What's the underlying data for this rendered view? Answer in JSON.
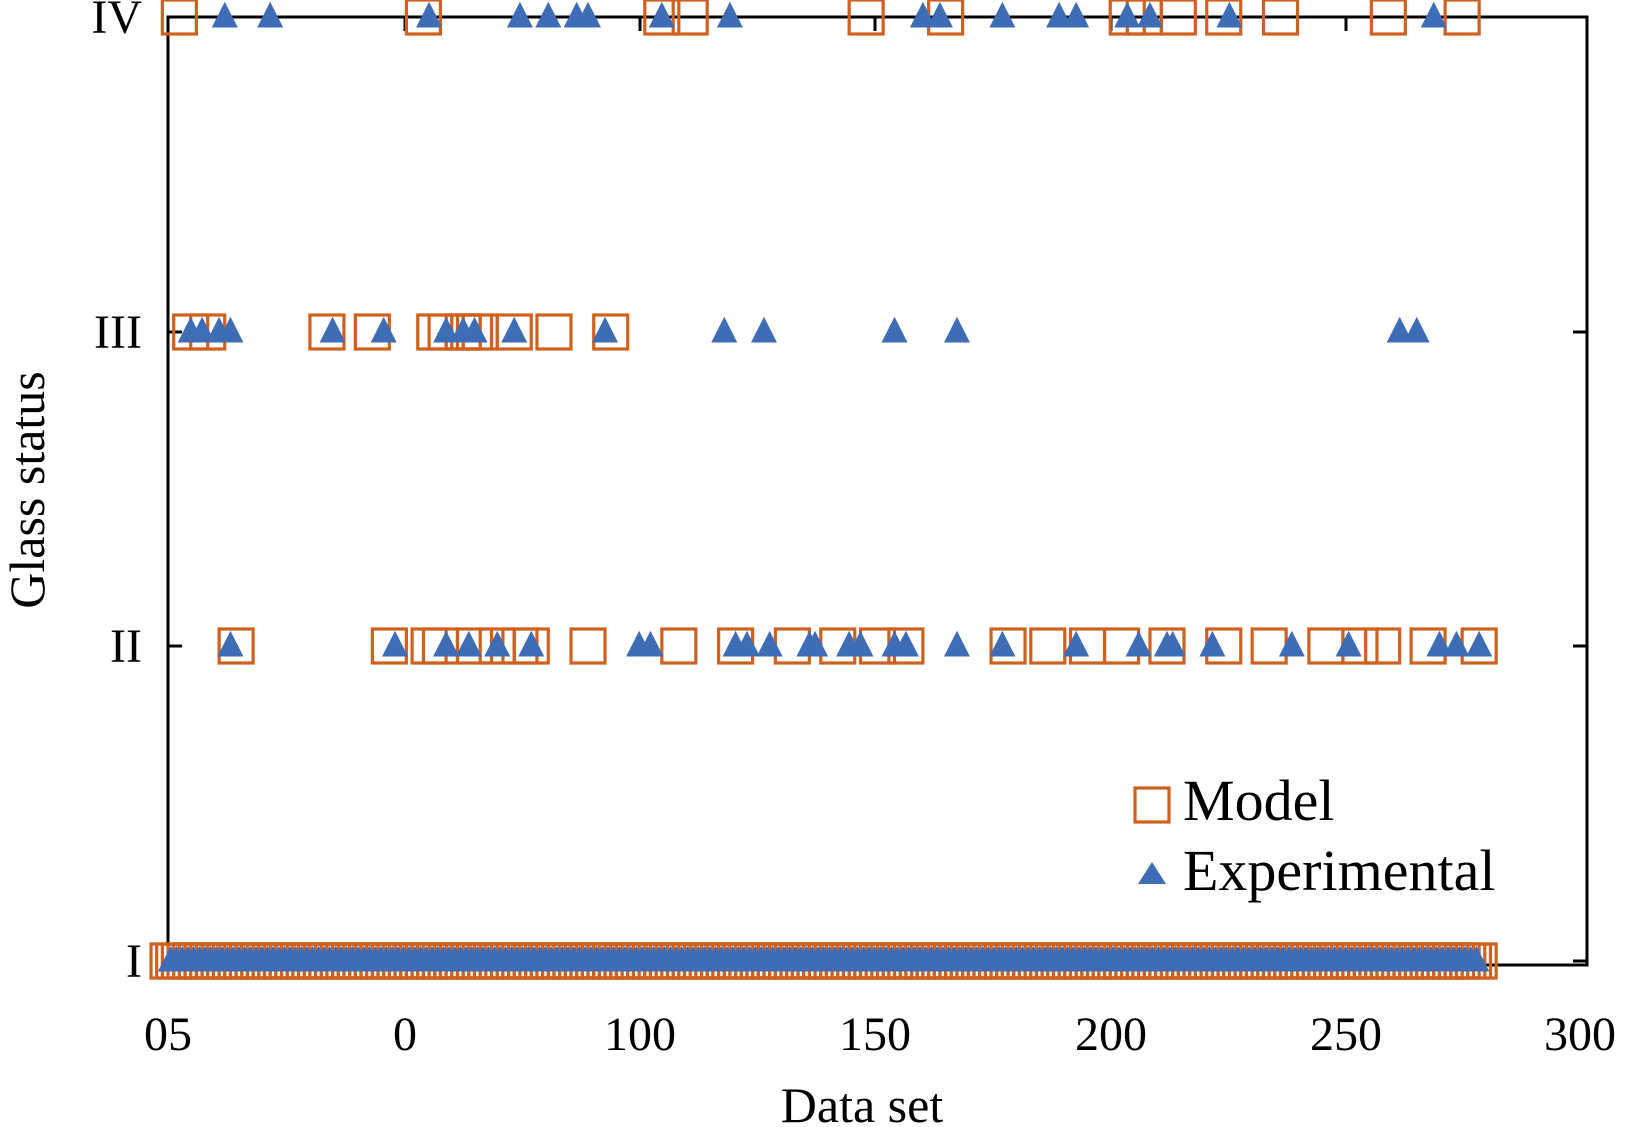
{
  "chart_data": {
    "type": "scatter",
    "xlabel": "Data set",
    "ylabel": "Glass status",
    "xlim": [
      50,
      300
    ],
    "ylim": [
      1,
      4
    ],
    "x_tick_labels": [
      "05",
      "0",
      "100",
      "150",
      "200",
      "250",
      "300"
    ],
    "y_tick_labels": [
      "I",
      "II",
      "III",
      "IV"
    ],
    "grid": false,
    "legend_placement": "bottom-right",
    "series": [
      {
        "name": "Model",
        "marker": "open-square",
        "color": "#d0601e",
        "points": {
          "level_4": [
            52,
            95,
            137,
            142,
            173,
            187,
            219,
            222,
            228,
            236,
            246,
            265,
            278
          ],
          "level_3": [
            54,
            57,
            78,
            86,
            97,
            99,
            102,
            105,
            111,
            118,
            128,
            102,
            104
          ],
          "level_2": [
            62,
            89,
            96,
            98,
            104,
            108,
            112,
            114,
            124,
            140,
            150,
            160,
            168,
            175,
            180,
            198,
            205,
            212,
            218,
            226,
            236,
            244,
            254,
            260,
            264,
            272,
            281
          ],
          "level_1_range": [
            50,
            281
          ]
        }
      },
      {
        "name": "Experimental",
        "marker": "filled-triangle",
        "color": "#3e6db5",
        "points": {
          "level_4": [
            60,
            68,
            96,
            112,
            117,
            122,
            124,
            137,
            149,
            183,
            186,
            197,
            207,
            210,
            219,
            223,
            237,
            273
          ],
          "level_3": [
            54,
            56,
            59,
            61,
            79,
            88,
            99,
            102,
            104,
            111,
            127,
            148,
            155,
            178,
            189,
            267,
            270
          ],
          "level_2": [
            61,
            90,
            99,
            103,
            108,
            114,
            133,
            135,
            150,
            152,
            156,
            163,
            164,
            170,
            172,
            178,
            180,
            189,
            197,
            210,
            221,
            226,
            227,
            234,
            248,
            258,
            274,
            277,
            281
          ],
          "level_1_range": [
            50,
            281
          ]
        }
      }
    ]
  }
}
